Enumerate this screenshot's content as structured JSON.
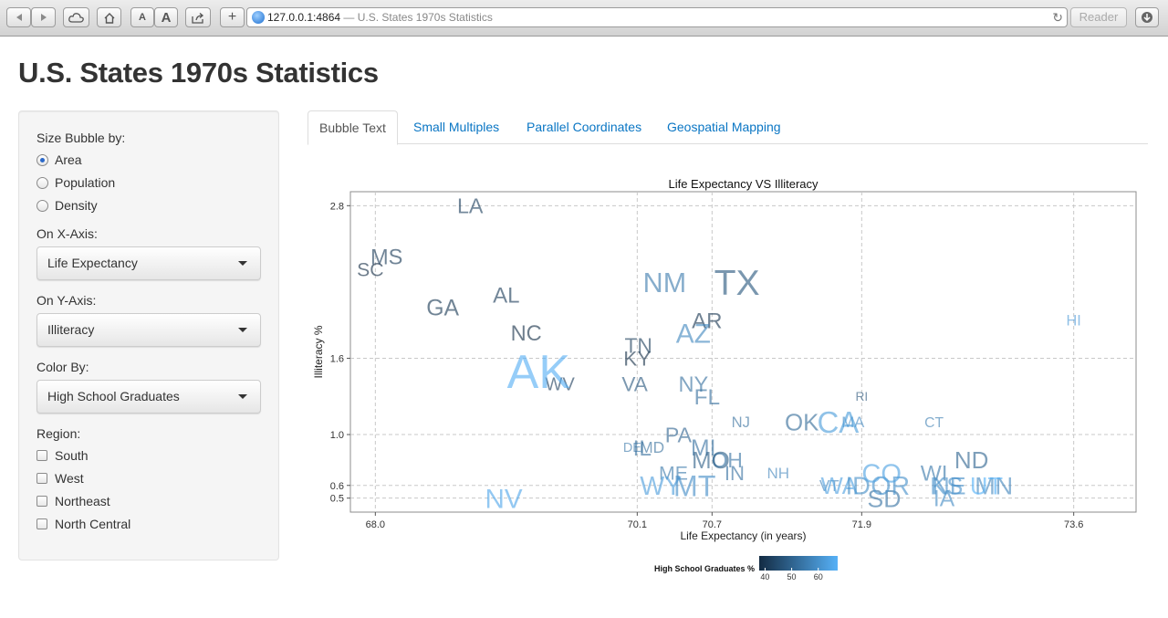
{
  "browser": {
    "url": "127.0.0.1:4864",
    "title_suffix": "— U.S. States 1970s Statistics",
    "reader": "Reader",
    "font_small": "A",
    "font_large": "A",
    "new_tab": "+"
  },
  "page": {
    "title": "U.S. States 1970s Statistics"
  },
  "sidebar": {
    "size_label": "Size Bubble by:",
    "size_options": [
      {
        "label": "Area",
        "selected": true
      },
      {
        "label": "Population",
        "selected": false
      },
      {
        "label": "Density",
        "selected": false
      }
    ],
    "x_label": "On X-Axis:",
    "x_value": "Life Expectancy",
    "y_label": "On Y-Axis:",
    "y_value": "Illiteracy",
    "color_label": "Color By:",
    "color_value": "High School Graduates",
    "region_label": "Region:",
    "regions": [
      {
        "label": "South",
        "checked": false
      },
      {
        "label": "West",
        "checked": false
      },
      {
        "label": "Northeast",
        "checked": false
      },
      {
        "label": "North Central",
        "checked": false
      }
    ]
  },
  "tabs": [
    {
      "label": "Bubble Text",
      "active": true
    },
    {
      "label": "Small Multiples",
      "active": false
    },
    {
      "label": "Parallel Coordinates",
      "active": false
    },
    {
      "label": "Geospatial Mapping",
      "active": false
    }
  ],
  "chart_data": {
    "type": "scatter",
    "title": "Life Expectancy VS Illiteracy",
    "xlabel": "Life Expectancy (in years)",
    "ylabel": "Illiteracy %",
    "xlim": [
      67.8,
      74.1
    ],
    "ylim": [
      0.39,
      2.91
    ],
    "xticks": [
      {
        "value": 68.0,
        "label": "68.0"
      },
      {
        "value": 70.1,
        "label": "70.1"
      },
      {
        "value": 70.7,
        "label": "70.7"
      },
      {
        "value": 71.9,
        "label": "71.9"
      },
      {
        "value": 73.6,
        "label": "73.6"
      }
    ],
    "yticks": [
      {
        "value": 0.5,
        "label": "0.5"
      },
      {
        "value": 0.6,
        "label": "0.6"
      },
      {
        "value": 1.0,
        "label": "1.0"
      },
      {
        "value": 1.6,
        "label": "1.6"
      },
      {
        "value": 2.8,
        "label": "2.8"
      }
    ],
    "grid": true,
    "legend": {
      "title": "High School Graduates %",
      "ticks": [
        "40",
        "50",
        "60"
      ],
      "range": [
        37.8,
        67.3
      ],
      "low_color": "#132B43",
      "high_color": "#56B1F7",
      "placement": "bottom"
    },
    "points": [
      {
        "label": "AL",
        "x": 69.05,
        "y": 2.1,
        "size": 51609,
        "color": 41.3
      },
      {
        "label": "AK",
        "x": 69.31,
        "y": 1.5,
        "size": 566432,
        "color": 66.7
      },
      {
        "label": "AZ",
        "x": 70.55,
        "y": 1.8,
        "size": 113417,
        "color": 58.1
      },
      {
        "label": "AR",
        "x": 70.66,
        "y": 1.9,
        "size": 51945,
        "color": 39.9
      },
      {
        "label": "CA",
        "x": 71.71,
        "y": 1.1,
        "size": 156361,
        "color": 62.6
      },
      {
        "label": "CO",
        "x": 72.06,
        "y": 0.7,
        "size": 103766,
        "color": 63.9
      },
      {
        "label": "CT",
        "x": 72.48,
        "y": 1.1,
        "size": 4862,
        "color": 56.0
      },
      {
        "label": "DE",
        "x": 70.06,
        "y": 0.9,
        "size": 1982,
        "color": 54.6
      },
      {
        "label": "FL",
        "x": 70.66,
        "y": 1.3,
        "size": 54090,
        "color": 52.6
      },
      {
        "label": "GA",
        "x": 68.54,
        "y": 2.0,
        "size": 58073,
        "color": 40.6
      },
      {
        "label": "HI",
        "x": 73.6,
        "y": 1.9,
        "size": 6425,
        "color": 61.9
      },
      {
        "label": "ID",
        "x": 71.87,
        "y": 0.6,
        "size": 82677,
        "color": 59.5
      },
      {
        "label": "IL",
        "x": 70.14,
        "y": 0.9,
        "size": 55748,
        "color": 52.6
      },
      {
        "label": "IN",
        "x": 70.88,
        "y": 0.7,
        "size": 36097,
        "color": 52.9
      },
      {
        "label": "IA",
        "x": 72.56,
        "y": 0.5,
        "size": 55941,
        "color": 59.0
      },
      {
        "label": "KS",
        "x": 72.58,
        "y": 0.6,
        "size": 81787,
        "color": 59.9
      },
      {
        "label": "KY",
        "x": 70.1,
        "y": 1.6,
        "size": 39650,
        "color": 38.5
      },
      {
        "label": "LA",
        "x": 68.76,
        "y": 2.8,
        "size": 44930,
        "color": 42.2
      },
      {
        "label": "ME",
        "x": 70.39,
        "y": 0.7,
        "size": 30920,
        "color": 54.7
      },
      {
        "label": "MD",
        "x": 70.22,
        "y": 0.9,
        "size": 9891,
        "color": 52.3
      },
      {
        "label": "MA",
        "x": 71.83,
        "y": 1.1,
        "size": 7826,
        "color": 58.5
      },
      {
        "label": "MI",
        "x": 70.63,
        "y": 0.9,
        "size": 56817,
        "color": 52.8
      },
      {
        "label": "MN",
        "x": 72.96,
        "y": 0.6,
        "size": 79289,
        "color": 57.6
      },
      {
        "label": "MS",
        "x": 68.09,
        "y": 2.4,
        "size": 47296,
        "color": 41.0
      },
      {
        "label": "MO",
        "x": 70.69,
        "y": 0.8,
        "size": 68995,
        "color": 48.8
      },
      {
        "label": "MT",
        "x": 70.56,
        "y": 0.6,
        "size": 145587,
        "color": 59.2
      },
      {
        "label": "NE",
        "x": 72.6,
        "y": 0.6,
        "size": 76483,
        "color": 59.3
      },
      {
        "label": "NV",
        "x": 69.03,
        "y": 0.5,
        "size": 109889,
        "color": 65.2
      },
      {
        "label": "NH",
        "x": 71.23,
        "y": 0.7,
        "size": 9027,
        "color": 57.6
      },
      {
        "label": "NJ",
        "x": 70.93,
        "y": 1.1,
        "size": 7521,
        "color": 52.5
      },
      {
        "label": "NM",
        "x": 70.32,
        "y": 2.2,
        "size": 121412,
        "color": 55.2
      },
      {
        "label": "NY",
        "x": 70.55,
        "y": 1.4,
        "size": 47831,
        "color": 52.7
      },
      {
        "label": "NC",
        "x": 69.21,
        "y": 1.8,
        "size": 48798,
        "color": 38.5
      },
      {
        "label": "ND",
        "x": 72.78,
        "y": 0.8,
        "size": 69273,
        "color": 50.3
      },
      {
        "label": "OH",
        "x": 70.82,
        "y": 0.8,
        "size": 40975,
        "color": 53.2
      },
      {
        "label": "OK",
        "x": 71.42,
        "y": 1.1,
        "size": 68782,
        "color": 51.6
      },
      {
        "label": "OR",
        "x": 72.13,
        "y": 0.6,
        "size": 96184,
        "color": 60.0
      },
      {
        "label": "PA",
        "x": 70.43,
        "y": 1.0,
        "size": 44966,
        "color": 50.2
      },
      {
        "label": "RI",
        "x": 71.9,
        "y": 1.3,
        "size": 1049,
        "color": 46.4
      },
      {
        "label": "SC",
        "x": 67.96,
        "y": 2.3,
        "size": 30225,
        "color": 37.8
      },
      {
        "label": "SD",
        "x": 72.08,
        "y": 0.5,
        "size": 75955,
        "color": 53.3
      },
      {
        "label": "TN",
        "x": 70.11,
        "y": 1.7,
        "size": 41328,
        "color": 41.8
      },
      {
        "label": "TX",
        "x": 70.9,
        "y": 2.2,
        "size": 262134,
        "color": 47.4
      },
      {
        "label": "UT",
        "x": 72.9,
        "y": 0.6,
        "size": 82096,
        "color": 67.3
      },
      {
        "label": "VT",
        "x": 71.64,
        "y": 0.6,
        "size": 9267,
        "color": 57.1
      },
      {
        "label": "VA",
        "x": 70.08,
        "y": 1.4,
        "size": 39780,
        "color": 47.8
      },
      {
        "label": "WA",
        "x": 71.72,
        "y": 0.6,
        "size": 66570,
        "color": 63.5
      },
      {
        "label": "WV",
        "x": 69.48,
        "y": 1.4,
        "size": 24070,
        "color": 41.6
      },
      {
        "label": "WI",
        "x": 72.48,
        "y": 0.7,
        "size": 54464,
        "color": 54.5
      },
      {
        "label": "WY",
        "x": 70.29,
        "y": 0.6,
        "size": 97203,
        "color": 62.9
      }
    ]
  }
}
